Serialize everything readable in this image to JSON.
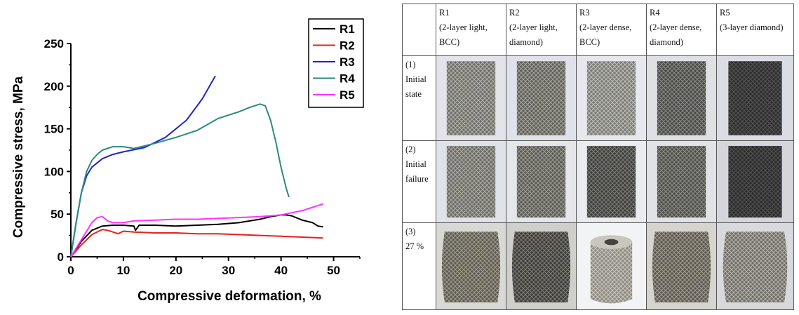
{
  "chart_data": {
    "type": "line",
    "xlabel": "Compressive deformation, %",
    "ylabel": "Compressive stress, MPa",
    "xlim": [
      0,
      55
    ],
    "ylim": [
      0,
      250
    ],
    "xticks": [
      0,
      10,
      20,
      30,
      40,
      50
    ],
    "yticks": [
      0,
      50,
      100,
      150,
      200,
      250
    ],
    "legend_position": "top-right",
    "series": [
      {
        "name": "R1",
        "color": "#000000",
        "x": [
          0,
          2,
          4,
          6,
          8,
          10,
          12,
          12.3,
          13,
          16,
          20,
          24,
          28,
          32,
          36,
          38,
          40,
          41,
          42,
          44,
          46,
          47,
          48
        ],
        "y": [
          0,
          18,
          31,
          36,
          37,
          37,
          36,
          31,
          37,
          37,
          36,
          37,
          38,
          40,
          44,
          47,
          49,
          49,
          48,
          43,
          40,
          36,
          35
        ]
      },
      {
        "name": "R2",
        "color": "#e8201b",
        "x": [
          0,
          2,
          4,
          6,
          7,
          8,
          9,
          10,
          12,
          16,
          20,
          24,
          28,
          32,
          36,
          40,
          44,
          48
        ],
        "y": [
          0,
          14,
          26,
          32,
          31,
          29,
          27,
          30,
          29,
          28,
          28,
          27,
          27,
          26,
          25,
          24,
          23,
          22
        ]
      },
      {
        "name": "R3",
        "color": "#2323c8",
        "x": [
          0,
          1,
          2,
          3,
          4,
          6,
          8,
          10,
          14,
          18,
          22,
          25,
          27.5
        ],
        "y": [
          0,
          40,
          75,
          95,
          105,
          115,
          120,
          123,
          128,
          140,
          160,
          185,
          212
        ]
      },
      {
        "name": "R4",
        "color": "#2a8a80",
        "x": [
          0,
          1,
          2,
          3,
          4,
          5,
          6,
          8,
          10,
          12,
          16,
          20,
          24,
          28,
          30,
          32,
          34,
          36,
          37,
          38,
          39,
          40,
          41,
          41.5
        ],
        "y": [
          0,
          40,
          75,
          100,
          113,
          120,
          125,
          129,
          129,
          127,
          133,
          140,
          148,
          162,
          166,
          170,
          175,
          179,
          177,
          160,
          135,
          105,
          80,
          70
        ]
      },
      {
        "name": "R5",
        "color": "#ff33ff",
        "x": [
          0,
          2,
          4,
          5,
          6,
          7,
          8,
          10,
          12,
          16,
          20,
          24,
          28,
          32,
          36,
          40,
          44,
          46,
          48
        ],
        "y": [
          0,
          20,
          40,
          46,
          47,
          42,
          40,
          40,
          42,
          43,
          44,
          44,
          45,
          46,
          47,
          49,
          54,
          58,
          62
        ]
      }
    ]
  },
  "table": {
    "headers": [
      {
        "id": "R1",
        "desc": "(2-layer light, BCC)"
      },
      {
        "id": "R2",
        "desc": "(2-layer light, diamond)"
      },
      {
        "id": "R3",
        "desc": "(2-layer dense, BCC)"
      },
      {
        "id": "R4",
        "desc": "(2-layer dense, diamond)"
      },
      {
        "id": "R5",
        "desc": "(3-layer diamond)"
      }
    ],
    "rows": [
      {
        "num": "(1)",
        "label": "Initial state"
      },
      {
        "num": "(2)",
        "label": "Initial failure"
      },
      {
        "num": "(3)",
        "label": "27 %"
      }
    ]
  }
}
